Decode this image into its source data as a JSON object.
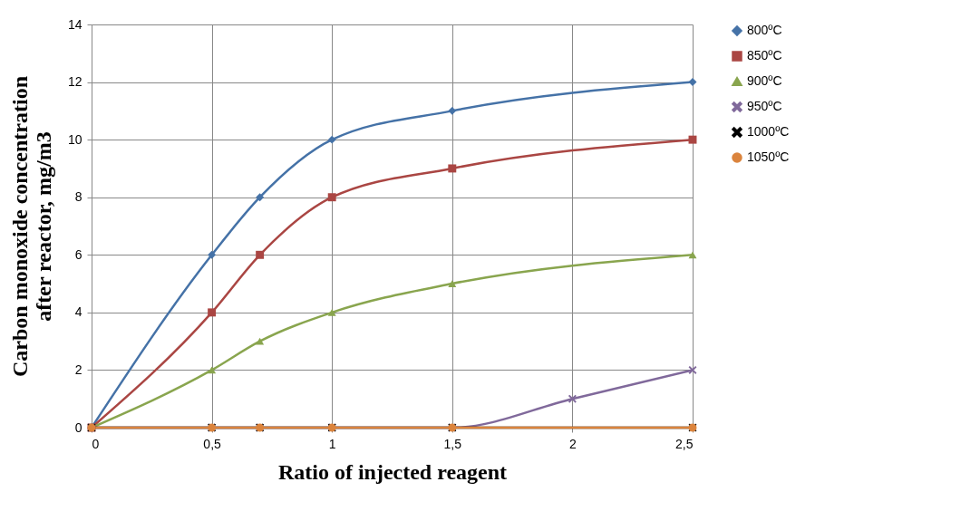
{
  "chart_data": {
    "type": "line",
    "xlabel": "Ratio of injected reagent",
    "ylabel": "Carbon monoxide concentration after reactor, mg/m3",
    "x": [
      0,
      0.5,
      0.7,
      1,
      1.5,
      2.5
    ],
    "series": [
      {
        "name": "800ºC",
        "color": "#4572a7",
        "marker": "diamond",
        "values": [
          0,
          6,
          8,
          10,
          11,
          12
        ]
      },
      {
        "name": "850ºC",
        "color": "#aa4643",
        "marker": "square",
        "values": [
          0,
          4,
          6,
          8,
          9,
          10
        ]
      },
      {
        "name": "900ºC",
        "color": "#89a54e",
        "marker": "triangle",
        "values": [
          0,
          2,
          3,
          4,
          5,
          6
        ]
      },
      {
        "name": "950ºC",
        "color": "#80699b",
        "marker": "cross",
        "x": [
          0,
          0.5,
          0.7,
          1,
          1.5,
          2,
          2.5
        ],
        "values": [
          0,
          0,
          0,
          0,
          0,
          1,
          2
        ]
      },
      {
        "name": "1000ºC",
        "color": "#000000",
        "marker": "cross",
        "values": [
          0,
          0,
          0,
          0,
          0,
          0
        ]
      },
      {
        "name": "1050ºC",
        "color": "#db843d",
        "marker": "circle",
        "values": [
          0,
          0,
          0,
          0,
          0,
          0
        ]
      }
    ],
    "xlim": [
      0,
      2.5
    ],
    "xticks": [
      0,
      {
        "value": 0.5,
        "label": "0,5"
      },
      1,
      {
        "value": 1.5,
        "label": "1,5"
      },
      2,
      {
        "value": 2.5,
        "label": "2,5"
      }
    ],
    "ylim": [
      0,
      14
    ],
    "yticks": [
      0,
      2,
      4,
      6,
      8,
      10,
      12,
      14
    ],
    "grid": true,
    "legend": "right",
    "line_style": "solid"
  }
}
